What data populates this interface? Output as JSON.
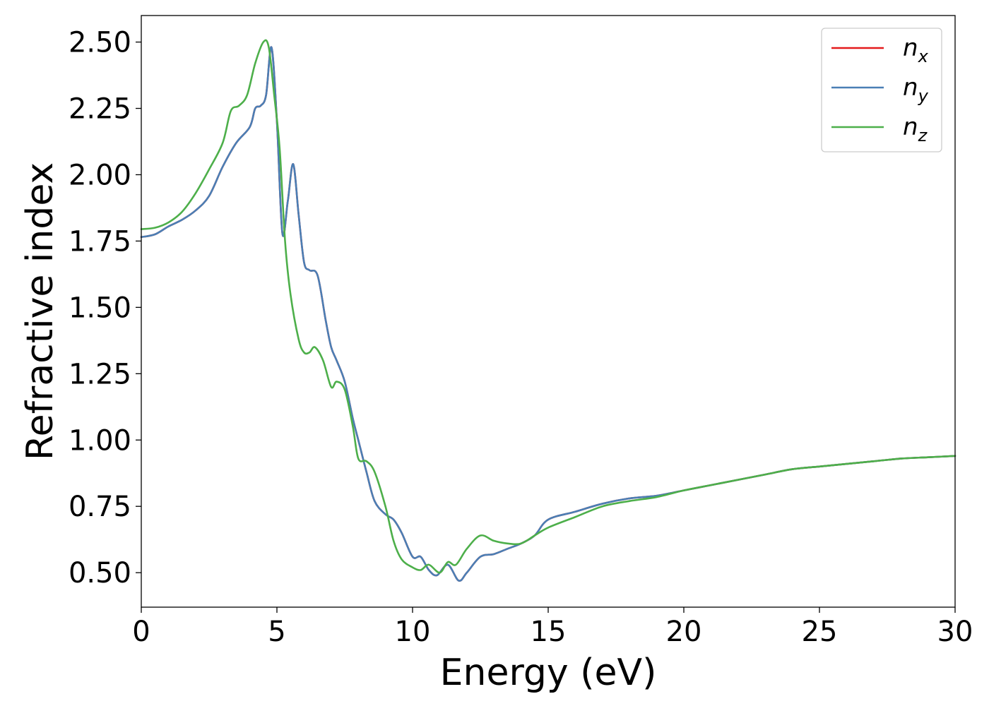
{
  "chart_data": {
    "type": "line",
    "title": "",
    "xlabel": "Energy (eV)",
    "ylabel": "Refractive index",
    "xlim": [
      0,
      30
    ],
    "ylim": [
      0.37,
      2.6
    ],
    "xticks": [
      0,
      5,
      10,
      15,
      20,
      25,
      30
    ],
    "xtick_labels": [
      "0",
      "5",
      "10",
      "15",
      "20",
      "25",
      "30"
    ],
    "yticks": [
      0.5,
      0.75,
      1.0,
      1.25,
      1.5,
      1.75,
      2.0,
      2.25,
      2.5
    ],
    "ytick_labels": [
      "0.50",
      "0.75",
      "1.00",
      "1.25",
      "1.50",
      "1.75",
      "2.00",
      "2.25",
      "2.50"
    ],
    "grid": false,
    "legend_position": "top-right",
    "series": [
      {
        "name": "n_x",
        "legend_base": "n",
        "legend_sub": "x",
        "color": "#e41a1c",
        "x": [
          0,
          0.5,
          1.0,
          1.5,
          2.0,
          2.5,
          3.0,
          3.5,
          4.0,
          4.2,
          4.4,
          4.6,
          4.8,
          5.0,
          5.2,
          5.4,
          5.6,
          5.8,
          6.0,
          6.2,
          6.5,
          6.8,
          7.0,
          7.2,
          7.5,
          7.8,
          8.0,
          8.3,
          8.6,
          9.0,
          9.3,
          9.6,
          10.0,
          10.3,
          10.6,
          10.9,
          11.3,
          11.7,
          12.0,
          12.5,
          13.0,
          13.5,
          14.0,
          14.5,
          15.0,
          16.0,
          17.0,
          18.0,
          19.0,
          20.0,
          21.0,
          22.0,
          23.0,
          24.0,
          25.0,
          26.0,
          27.0,
          28.0,
          29.0,
          30.0
        ],
        "y": [
          1.765,
          1.775,
          1.805,
          1.83,
          1.865,
          1.92,
          2.03,
          2.12,
          2.18,
          2.25,
          2.26,
          2.3,
          2.48,
          2.2,
          1.78,
          1.9,
          2.04,
          1.85,
          1.67,
          1.64,
          1.62,
          1.45,
          1.35,
          1.3,
          1.22,
          1.08,
          1.0,
          0.88,
          0.77,
          0.72,
          0.7,
          0.65,
          0.56,
          0.56,
          0.51,
          0.49,
          0.53,
          0.47,
          0.5,
          0.56,
          0.57,
          0.59,
          0.61,
          0.64,
          0.7,
          0.73,
          0.76,
          0.78,
          0.79,
          0.81,
          0.83,
          0.85,
          0.87,
          0.89,
          0.9,
          0.91,
          0.92,
          0.93,
          0.935,
          0.94
        ]
      },
      {
        "name": "n_y",
        "legend_base": "n",
        "legend_sub": "y",
        "color": "#4a7fb5",
        "x": [
          0,
          0.5,
          1.0,
          1.5,
          2.0,
          2.5,
          3.0,
          3.5,
          4.0,
          4.2,
          4.4,
          4.6,
          4.8,
          5.0,
          5.2,
          5.4,
          5.6,
          5.8,
          6.0,
          6.2,
          6.5,
          6.8,
          7.0,
          7.2,
          7.5,
          7.8,
          8.0,
          8.3,
          8.6,
          9.0,
          9.3,
          9.6,
          10.0,
          10.3,
          10.6,
          10.9,
          11.3,
          11.7,
          12.0,
          12.5,
          13.0,
          13.5,
          14.0,
          14.5,
          15.0,
          16.0,
          17.0,
          18.0,
          19.0,
          20.0,
          21.0,
          22.0,
          23.0,
          24.0,
          25.0,
          26.0,
          27.0,
          28.0,
          29.0,
          30.0
        ],
        "y": [
          1.765,
          1.775,
          1.805,
          1.83,
          1.865,
          1.92,
          2.03,
          2.12,
          2.18,
          2.25,
          2.26,
          2.3,
          2.48,
          2.2,
          1.78,
          1.9,
          2.04,
          1.85,
          1.67,
          1.64,
          1.62,
          1.45,
          1.35,
          1.3,
          1.22,
          1.08,
          1.0,
          0.88,
          0.77,
          0.72,
          0.7,
          0.65,
          0.56,
          0.56,
          0.51,
          0.49,
          0.53,
          0.47,
          0.5,
          0.56,
          0.57,
          0.59,
          0.61,
          0.64,
          0.7,
          0.73,
          0.76,
          0.78,
          0.79,
          0.81,
          0.83,
          0.85,
          0.87,
          0.89,
          0.9,
          0.91,
          0.92,
          0.93,
          0.935,
          0.94
        ]
      },
      {
        "name": "n_z",
        "legend_base": "n",
        "legend_sub": "z",
        "color": "#4daf4a",
        "x": [
          0,
          0.5,
          1.0,
          1.5,
          2.0,
          2.5,
          3.0,
          3.3,
          3.6,
          3.9,
          4.2,
          4.5,
          4.7,
          4.9,
          5.1,
          5.3,
          5.5,
          5.8,
          6.0,
          6.2,
          6.4,
          6.7,
          7.0,
          7.2,
          7.5,
          7.8,
          8.0,
          8.3,
          8.6,
          9.0,
          9.3,
          9.6,
          10.0,
          10.3,
          10.6,
          11.0,
          11.3,
          11.6,
          12.0,
          12.5,
          13.0,
          13.5,
          14.0,
          14.5,
          15.0,
          16.0,
          17.0,
          18.0,
          19.0,
          20.0,
          21.0,
          22.0,
          23.0,
          24.0,
          25.0,
          26.0,
          27.0,
          28.0,
          29.0,
          30.0
        ],
        "y": [
          1.795,
          1.8,
          1.82,
          1.86,
          1.93,
          2.02,
          2.12,
          2.24,
          2.26,
          2.3,
          2.42,
          2.5,
          2.48,
          2.3,
          2.1,
          1.75,
          1.55,
          1.38,
          1.33,
          1.33,
          1.35,
          1.3,
          1.2,
          1.22,
          1.19,
          1.05,
          0.93,
          0.92,
          0.88,
          0.75,
          0.62,
          0.55,
          0.52,
          0.51,
          0.53,
          0.5,
          0.54,
          0.53,
          0.59,
          0.64,
          0.62,
          0.61,
          0.61,
          0.64,
          0.67,
          0.71,
          0.75,
          0.77,
          0.785,
          0.81,
          0.83,
          0.85,
          0.87,
          0.89,
          0.9,
          0.91,
          0.92,
          0.93,
          0.935,
          0.94
        ]
      }
    ]
  }
}
